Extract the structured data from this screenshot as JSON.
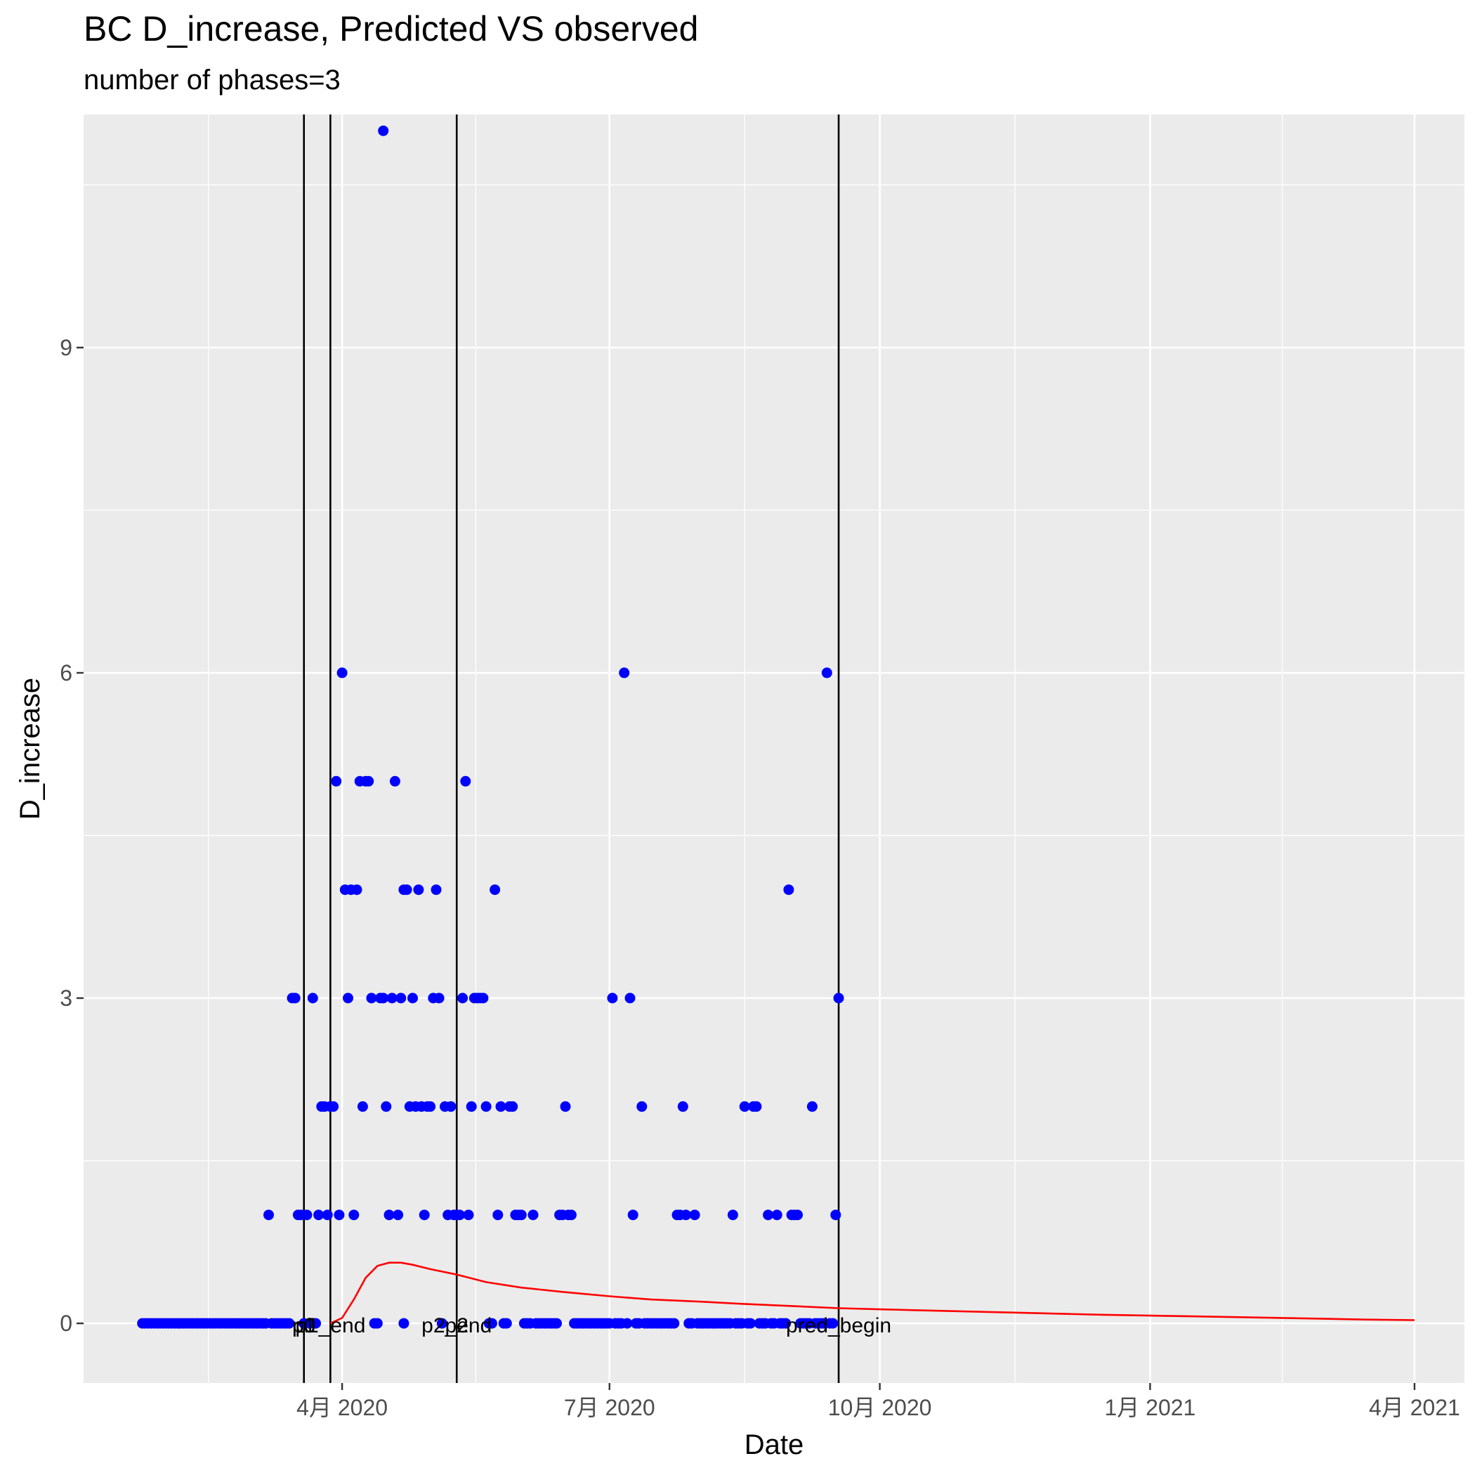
{
  "chart_data": {
    "type": "scatter",
    "title": "BC D_increase, Predicted VS observed",
    "subtitle": "number of phases=3",
    "xlabel": "Date",
    "ylabel": "D_increase",
    "x_type": "date",
    "xlim": [
      "2020-01-04",
      "2021-04-18"
    ],
    "ylim": [
      -0.55,
      11.15
    ],
    "grid": true,
    "legend": "none",
    "background": "#ebebeb",
    "x_ticks": [
      {
        "date": "2020-04-01",
        "label": "4月 2020"
      },
      {
        "date": "2020-07-01",
        "label": "7月 2020"
      },
      {
        "date": "2020-10-01",
        "label": "10月 2020"
      },
      {
        "date": "2021-01-01",
        "label": "1月 2021"
      },
      {
        "date": "2021-04-01",
        "label": "4月 2021"
      }
    ],
    "y_ticks": [
      0,
      3,
      6,
      9
    ],
    "vlines": [
      {
        "date": "2020-03-19",
        "label": "p1"
      },
      {
        "date": "2020-03-28",
        "label": "p1_end"
      },
      {
        "date": "2020-05-10",
        "label": "p2_end"
      },
      {
        "date": "2020-09-17",
        "label": "pred_begin"
      }
    ],
    "annotations": [
      {
        "date": "2020-03-19",
        "value": 0,
        "label": "p0"
      },
      {
        "date": "2020-03-19",
        "value": 0,
        "label": "p1"
      },
      {
        "date": "2020-03-28",
        "value": 0,
        "label": "p1_end"
      },
      {
        "date": "2020-05-10",
        "value": 0,
        "label": "p2"
      },
      {
        "date": "2020-05-10",
        "value": 0,
        "label": "p2_end"
      },
      {
        "date": "2020-09-17",
        "value": 0,
        "label": "pred_begin"
      }
    ],
    "series": [
      {
        "type": "scatter",
        "color": "#0000ff",
        "points": [
          [
            "2020-03-07",
            1
          ],
          [
            "2020-03-15",
            3
          ],
          [
            "2020-03-16",
            3
          ],
          [
            "2020-03-17",
            1
          ],
          [
            "2020-03-18",
            1
          ],
          [
            "2020-03-20",
            1
          ],
          [
            "2020-03-22",
            3
          ],
          [
            "2020-03-24",
            1
          ],
          [
            "2020-03-25",
            2
          ],
          [
            "2020-03-26",
            2
          ],
          [
            "2020-03-27",
            1
          ],
          [
            "2020-03-28",
            2
          ],
          [
            "2020-03-29",
            2
          ],
          [
            "2020-03-30",
            5
          ],
          [
            "2020-03-31",
            1
          ],
          [
            "2020-04-01",
            6
          ],
          [
            "2020-04-02",
            4
          ],
          [
            "2020-04-03",
            3
          ],
          [
            "2020-04-04",
            4
          ],
          [
            "2020-04-05",
            1
          ],
          [
            "2020-04-06",
            4
          ],
          [
            "2020-04-07",
            5
          ],
          [
            "2020-04-08",
            2
          ],
          [
            "2020-04-09",
            5
          ],
          [
            "2020-04-10",
            5
          ],
          [
            "2020-04-11",
            3
          ],
          [
            "2020-04-14",
            3
          ],
          [
            "2020-04-15",
            3
          ],
          [
            "2020-04-16",
            2
          ],
          [
            "2020-04-17",
            1
          ],
          [
            "2020-04-18",
            3
          ],
          [
            "2020-04-19",
            5
          ],
          [
            "2020-04-20",
            1
          ],
          [
            "2020-04-21",
            3
          ],
          [
            "2020-04-22",
            4
          ],
          [
            "2020-04-23",
            4
          ],
          [
            "2020-04-24",
            2
          ],
          [
            "2020-04-25",
            3
          ],
          [
            "2020-04-26",
            2
          ],
          [
            "2020-04-27",
            4
          ],
          [
            "2020-04-28",
            2
          ],
          [
            "2020-04-29",
            1
          ],
          [
            "2020-04-30",
            2
          ],
          [
            "2020-05-01",
            2
          ],
          [
            "2020-05-02",
            3
          ],
          [
            "2020-05-03",
            4
          ],
          [
            "2020-05-04",
            3
          ],
          [
            "2020-05-06",
            2
          ],
          [
            "2020-05-07",
            1
          ],
          [
            "2020-05-08",
            2
          ],
          [
            "2020-05-09",
            1
          ],
          [
            "2020-05-10",
            1
          ],
          [
            "2020-05-11",
            1
          ],
          [
            "2020-05-12",
            3
          ],
          [
            "2020-05-13",
            5
          ],
          [
            "2020-05-14",
            1
          ],
          [
            "2020-05-15",
            2
          ],
          [
            "2020-05-16",
            3
          ],
          [
            "2020-05-17",
            3
          ],
          [
            "2020-05-18",
            3
          ],
          [
            "2020-05-19",
            3
          ],
          [
            "2020-05-20",
            2
          ],
          [
            "2020-05-23",
            4
          ],
          [
            "2020-05-24",
            1
          ],
          [
            "2020-05-25",
            2
          ],
          [
            "2020-05-28",
            2
          ],
          [
            "2020-05-29",
            2
          ],
          [
            "2020-05-30",
            1
          ],
          [
            "2020-05-31",
            1
          ],
          [
            "2020-06-01",
            1
          ],
          [
            "2020-06-05",
            1
          ],
          [
            "2020-06-14",
            1
          ],
          [
            "2020-06-15",
            1
          ],
          [
            "2020-06-16",
            2
          ],
          [
            "2020-06-17",
            1
          ],
          [
            "2020-06-18",
            1
          ],
          [
            "2020-07-02",
            3
          ],
          [
            "2020-07-06",
            6
          ],
          [
            "2020-07-08",
            3
          ],
          [
            "2020-07-09",
            1
          ],
          [
            "2020-07-12",
            2
          ],
          [
            "2020-07-24",
            1
          ],
          [
            "2020-07-25",
            1
          ],
          [
            "2020-07-26",
            2
          ],
          [
            "2020-07-27",
            1
          ],
          [
            "2020-07-30",
            1
          ],
          [
            "2020-08-12",
            1
          ],
          [
            "2020-08-16",
            2
          ],
          [
            "2020-08-19",
            2
          ],
          [
            "2020-08-20",
            2
          ],
          [
            "2020-08-24",
            1
          ],
          [
            "2020-08-27",
            1
          ],
          [
            "2020-08-31",
            4
          ],
          [
            "2020-09-01",
            1
          ],
          [
            "2020-09-02",
            1
          ],
          [
            "2020-09-03",
            1
          ],
          [
            "2020-09-08",
            2
          ],
          [
            "2020-09-13",
            6
          ],
          [
            "2020-09-16",
            1
          ],
          [
            "2020-09-17",
            3
          ],
          [
            "2020-04-15",
            11
          ],
          [
            "2020-01-24",
            0
          ],
          [
            "2020-01-25",
            0
          ],
          [
            "2020-01-26",
            0
          ],
          [
            "2020-01-27",
            0
          ],
          [
            "2020-01-28",
            0
          ],
          [
            "2020-01-29",
            0
          ],
          [
            "2020-01-30",
            0
          ],
          [
            "2020-01-31",
            0
          ],
          [
            "2020-02-01",
            0
          ],
          [
            "2020-02-02",
            0
          ],
          [
            "2020-02-03",
            0
          ],
          [
            "2020-02-04",
            0
          ],
          [
            "2020-02-05",
            0
          ],
          [
            "2020-02-06",
            0
          ],
          [
            "2020-02-07",
            0
          ],
          [
            "2020-02-08",
            0
          ],
          [
            "2020-02-09",
            0
          ],
          [
            "2020-02-10",
            0
          ],
          [
            "2020-02-11",
            0
          ],
          [
            "2020-02-12",
            0
          ],
          [
            "2020-02-13",
            0
          ],
          [
            "2020-02-14",
            0
          ],
          [
            "2020-02-15",
            0
          ],
          [
            "2020-02-16",
            0
          ],
          [
            "2020-02-17",
            0
          ],
          [
            "2020-02-18",
            0
          ],
          [
            "2020-02-19",
            0
          ],
          [
            "2020-02-20",
            0
          ],
          [
            "2020-02-21",
            0
          ],
          [
            "2020-02-22",
            0
          ],
          [
            "2020-02-23",
            0
          ],
          [
            "2020-02-24",
            0
          ],
          [
            "2020-02-25",
            0
          ],
          [
            "2020-02-26",
            0
          ],
          [
            "2020-02-27",
            0
          ],
          [
            "2020-02-28",
            0
          ],
          [
            "2020-02-29",
            0
          ],
          [
            "2020-03-01",
            0
          ],
          [
            "2020-03-02",
            0
          ],
          [
            "2020-03-03",
            0
          ],
          [
            "2020-03-04",
            0
          ],
          [
            "2020-03-05",
            0
          ],
          [
            "2020-03-06",
            0
          ],
          [
            "2020-03-08",
            0
          ],
          [
            "2020-03-09",
            0
          ],
          [
            "2020-03-10",
            0
          ],
          [
            "2020-03-11",
            0
          ],
          [
            "2020-03-12",
            0
          ],
          [
            "2020-03-13",
            0
          ],
          [
            "2020-03-14",
            0
          ],
          [
            "2020-03-19",
            0
          ],
          [
            "2020-03-21",
            0
          ],
          [
            "2020-03-23",
            0
          ],
          [
            "2020-04-12",
            0
          ],
          [
            "2020-04-13",
            0
          ],
          [
            "2020-04-22",
            0
          ],
          [
            "2020-05-05",
            0
          ],
          [
            "2020-05-21",
            0
          ],
          [
            "2020-05-22",
            0
          ],
          [
            "2020-05-26",
            0
          ],
          [
            "2020-05-27",
            0
          ],
          [
            "2020-06-02",
            0
          ],
          [
            "2020-06-03",
            0
          ],
          [
            "2020-06-04",
            0
          ],
          [
            "2020-06-06",
            0
          ],
          [
            "2020-06-07",
            0
          ],
          [
            "2020-06-08",
            0
          ],
          [
            "2020-06-09",
            0
          ],
          [
            "2020-06-10",
            0
          ],
          [
            "2020-06-11",
            0
          ],
          [
            "2020-06-12",
            0
          ],
          [
            "2020-06-13",
            0
          ],
          [
            "2020-06-19",
            0
          ],
          [
            "2020-06-20",
            0
          ],
          [
            "2020-06-21",
            0
          ],
          [
            "2020-06-22",
            0
          ],
          [
            "2020-06-23",
            0
          ],
          [
            "2020-06-24",
            0
          ],
          [
            "2020-06-25",
            0
          ],
          [
            "2020-06-26",
            0
          ],
          [
            "2020-06-27",
            0
          ],
          [
            "2020-06-28",
            0
          ],
          [
            "2020-06-29",
            0
          ],
          [
            "2020-06-30",
            0
          ],
          [
            "2020-07-01",
            0
          ],
          [
            "2020-07-03",
            0
          ],
          [
            "2020-07-04",
            0
          ],
          [
            "2020-07-05",
            0
          ],
          [
            "2020-07-07",
            0
          ],
          [
            "2020-07-10",
            0
          ],
          [
            "2020-07-11",
            0
          ],
          [
            "2020-07-13",
            0
          ],
          [
            "2020-07-14",
            0
          ],
          [
            "2020-07-15",
            0
          ],
          [
            "2020-07-16",
            0
          ],
          [
            "2020-07-17",
            0
          ],
          [
            "2020-07-18",
            0
          ],
          [
            "2020-07-19",
            0
          ],
          [
            "2020-07-20",
            0
          ],
          [
            "2020-07-21",
            0
          ],
          [
            "2020-07-22",
            0
          ],
          [
            "2020-07-23",
            0
          ],
          [
            "2020-07-28",
            0
          ],
          [
            "2020-07-29",
            0
          ],
          [
            "2020-07-31",
            0
          ],
          [
            "2020-08-01",
            0
          ],
          [
            "2020-08-02",
            0
          ],
          [
            "2020-08-03",
            0
          ],
          [
            "2020-08-04",
            0
          ],
          [
            "2020-08-05",
            0
          ],
          [
            "2020-08-06",
            0
          ],
          [
            "2020-08-07",
            0
          ],
          [
            "2020-08-08",
            0
          ],
          [
            "2020-08-09",
            0
          ],
          [
            "2020-08-10",
            0
          ],
          [
            "2020-08-11",
            0
          ],
          [
            "2020-08-13",
            0
          ],
          [
            "2020-08-14",
            0
          ],
          [
            "2020-08-15",
            0
          ],
          [
            "2020-08-17",
            0
          ],
          [
            "2020-08-18",
            0
          ],
          [
            "2020-08-21",
            0
          ],
          [
            "2020-08-22",
            0
          ],
          [
            "2020-08-23",
            0
          ],
          [
            "2020-08-25",
            0
          ],
          [
            "2020-08-26",
            0
          ],
          [
            "2020-08-28",
            0
          ],
          [
            "2020-08-29",
            0
          ],
          [
            "2020-08-30",
            0
          ],
          [
            "2020-09-04",
            0
          ],
          [
            "2020-09-05",
            0
          ],
          [
            "2020-09-06",
            0
          ],
          [
            "2020-09-07",
            0
          ],
          [
            "2020-09-09",
            0
          ],
          [
            "2020-09-10",
            0
          ],
          [
            "2020-09-11",
            0
          ],
          [
            "2020-09-12",
            0
          ],
          [
            "2020-09-14",
            0
          ],
          [
            "2020-09-15",
            0
          ]
        ]
      },
      {
        "type": "line",
        "color": "#ff0000",
        "points": [
          [
            "2020-03-28",
            0
          ],
          [
            "2020-04-01",
            0.05
          ],
          [
            "2020-04-05",
            0.22
          ],
          [
            "2020-04-09",
            0.42
          ],
          [
            "2020-04-13",
            0.53
          ],
          [
            "2020-04-17",
            0.56
          ],
          [
            "2020-04-21",
            0.56
          ],
          [
            "2020-04-25",
            0.54
          ],
          [
            "2020-05-01",
            0.5
          ],
          [
            "2020-05-10",
            0.45
          ],
          [
            "2020-05-20",
            0.38
          ],
          [
            "2020-06-01",
            0.33
          ],
          [
            "2020-06-15",
            0.29
          ],
          [
            "2020-07-01",
            0.25
          ],
          [
            "2020-07-15",
            0.22
          ],
          [
            "2020-08-01",
            0.2
          ],
          [
            "2020-08-15",
            0.18
          ],
          [
            "2020-09-01",
            0.16
          ],
          [
            "2020-09-17",
            0.14
          ],
          [
            "2020-10-15",
            0.12
          ],
          [
            "2020-11-15",
            0.1
          ],
          [
            "2020-12-15",
            0.08
          ],
          [
            "2021-01-15",
            0.065
          ],
          [
            "2021-02-15",
            0.05
          ],
          [
            "2021-03-15",
            0.035
          ],
          [
            "2021-04-01",
            0.03
          ]
        ]
      }
    ]
  }
}
